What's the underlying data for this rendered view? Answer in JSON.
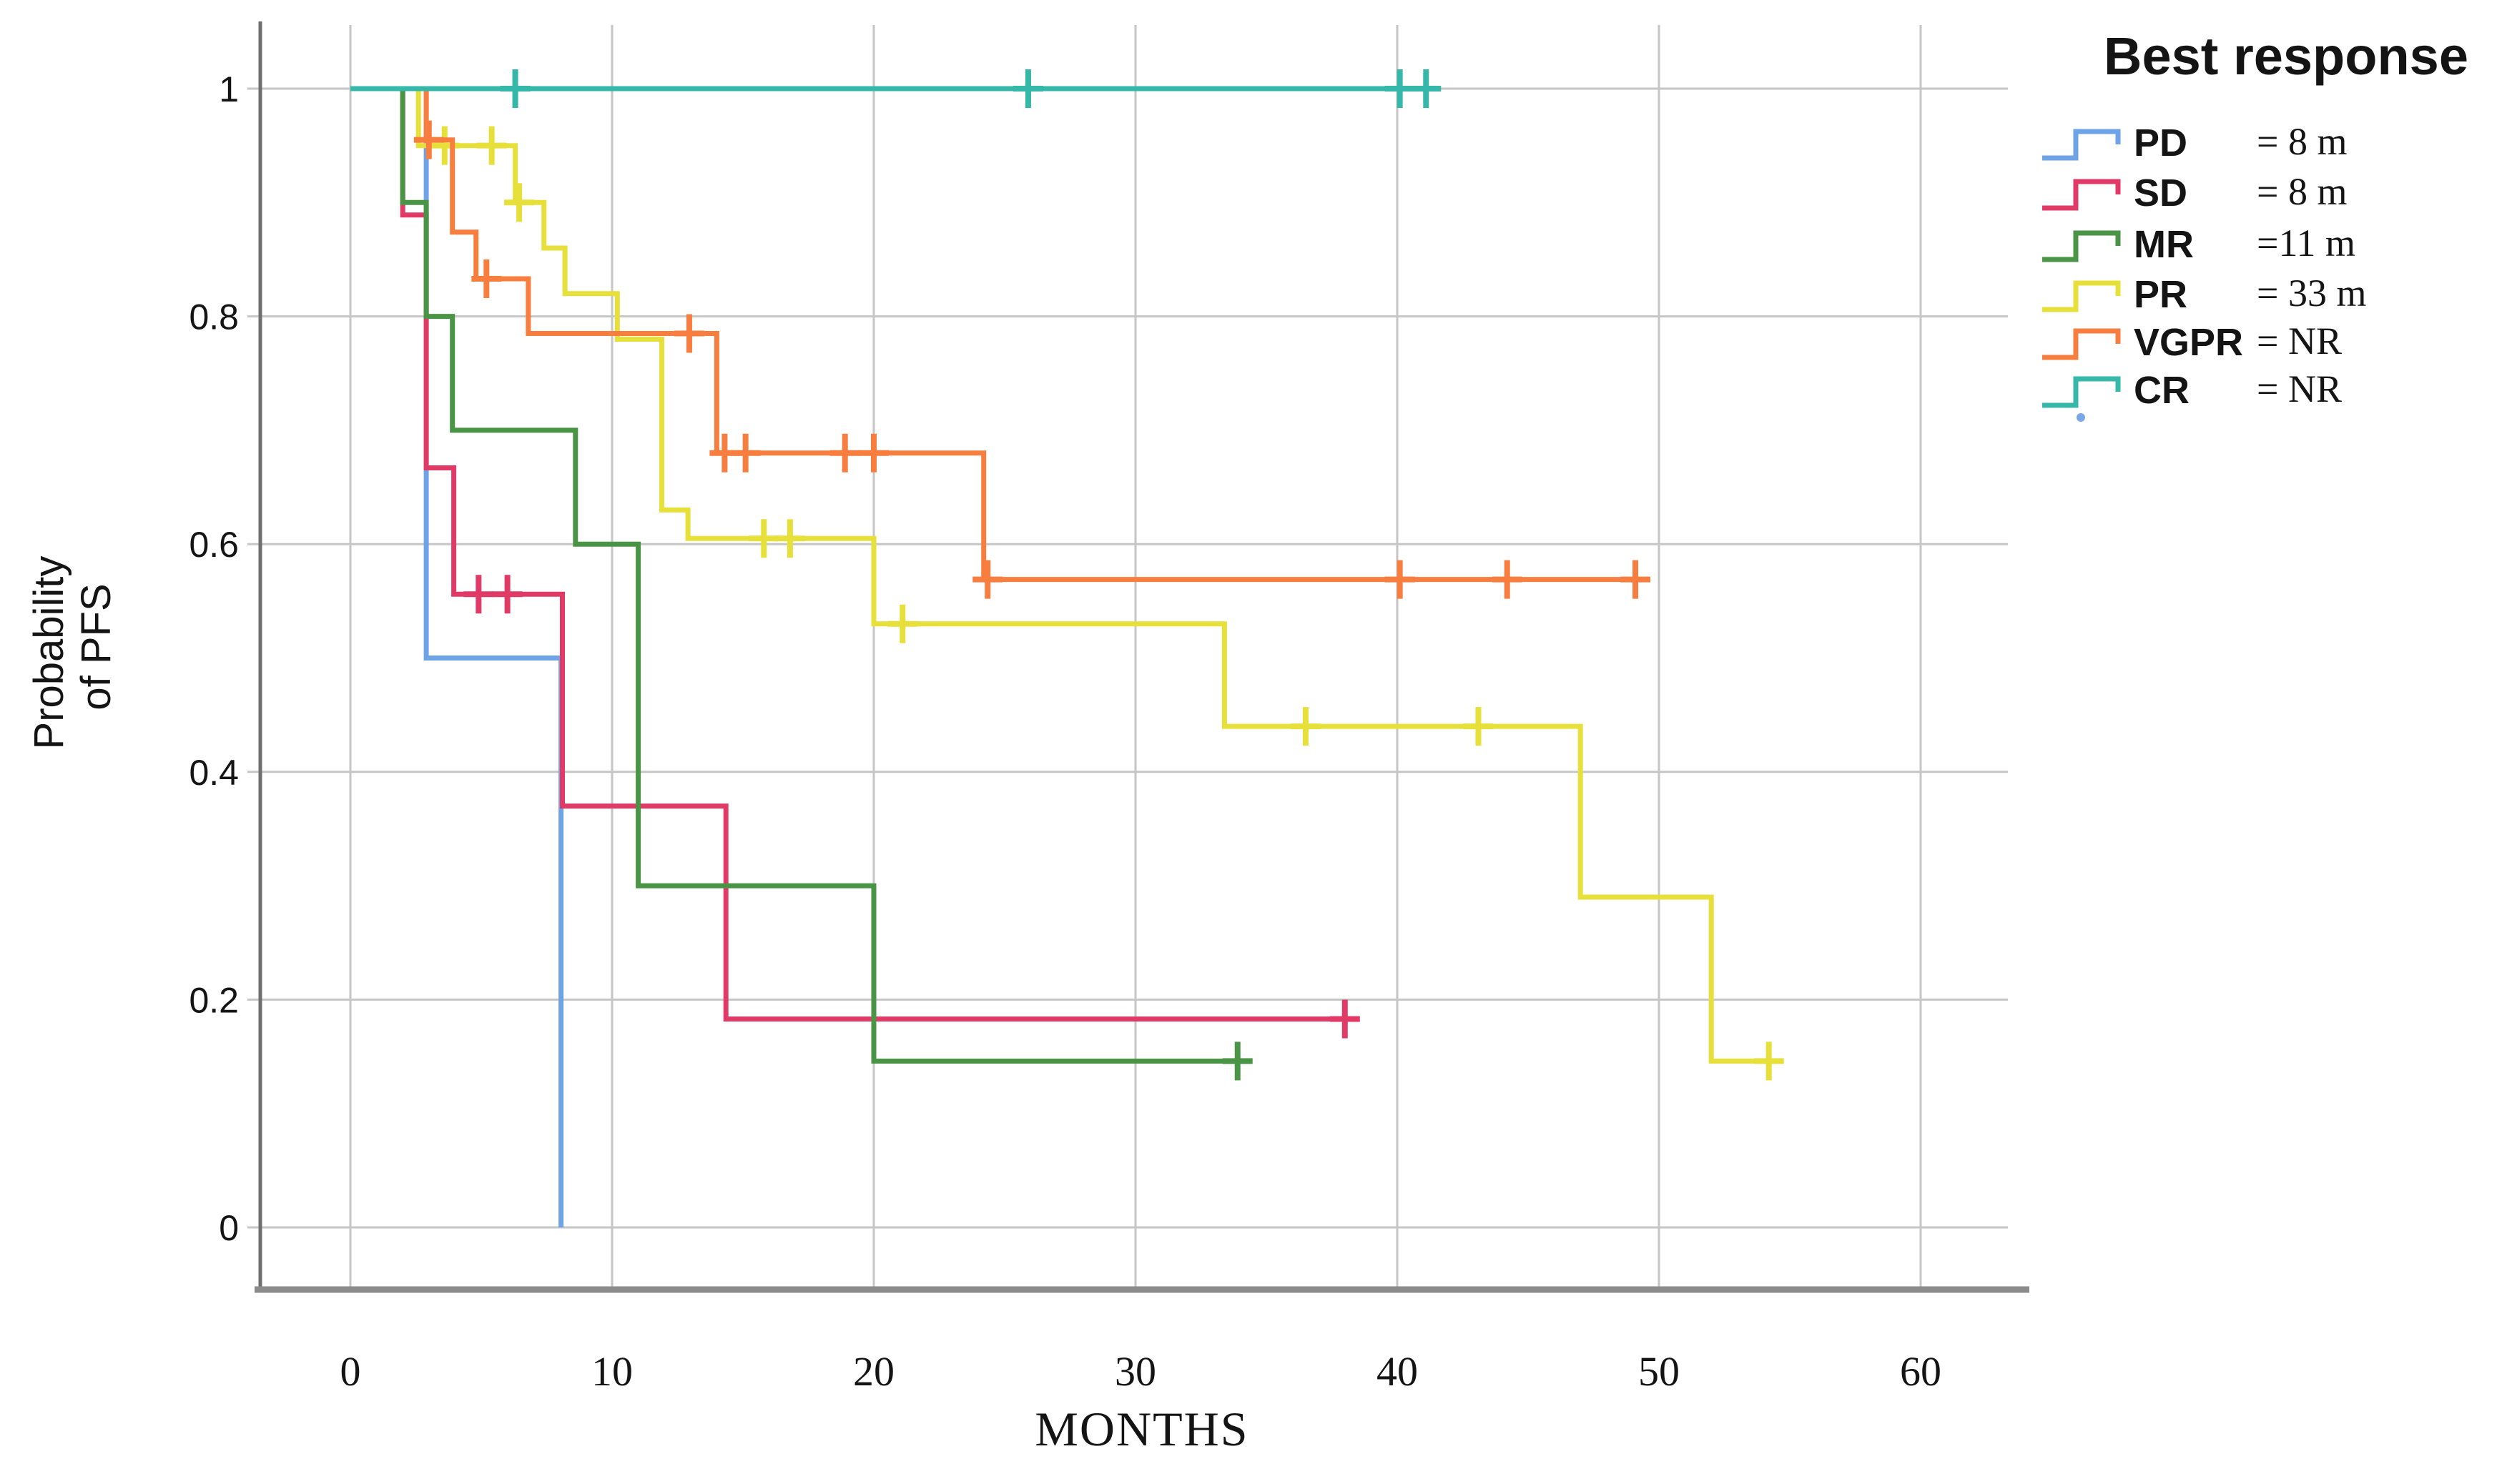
{
  "legend": {
    "title": "Best response",
    "items": [
      {
        "label": "PD",
        "value": "= 8 m"
      },
      {
        "label": "SD",
        "value": "= 8 m"
      },
      {
        "label": "MR",
        "value": "=11 m"
      },
      {
        "label": "PR",
        "value": "= 33 m"
      },
      {
        "label": "VGPR",
        "value": "= NR"
      },
      {
        "label": "CR",
        "value": "= NR"
      }
    ]
  },
  "x_axis": {
    "label": "MONTHS",
    "tick_values": [
      0,
      10,
      20,
      30,
      40,
      50,
      60
    ],
    "tick_labels": [
      "0",
      "10",
      "20",
      "30",
      "40",
      "50",
      "60"
    ]
  },
  "y_axis": {
    "label_lines": [
      "Probability",
      "of PFS"
    ],
    "tick_values": [
      1,
      0.8,
      0.6,
      0.4,
      0.2,
      0
    ],
    "tick_labels": [
      "1",
      "0.8",
      "0.6",
      "0.4",
      "0.2",
      "0"
    ]
  },
  "colors": {
    "grid": "#c6c6c6",
    "axis_left": "#6f6f6f",
    "axis_bottom": "#8b8b8b",
    "text": "#141414"
  },
  "chart_data": {
    "type": "line",
    "subtype": "kaplan_meier_step",
    "title": "Best response",
    "xlabel": "MONTHS",
    "ylabel": "Probability of PFS",
    "xlim": [
      -3.5,
      64
    ],
    "ylim": [
      -0.09,
      1.06
    ],
    "grid": true,
    "legend_position": "top-right",
    "x_ticks": [
      0,
      10,
      20,
      30,
      40,
      50,
      60
    ],
    "y_ticks": [
      0,
      0.2,
      0.4,
      0.6,
      0.8,
      1
    ],
    "series": [
      {
        "name": "PD",
        "median_label": "= 8 m",
        "color": "#6FA3E8",
        "points": [
          [
            0,
            1
          ],
          [
            2.9,
            1
          ],
          [
            2.9,
            0.5
          ],
          [
            8.05,
            0.5
          ],
          [
            8.05,
            0
          ]
        ],
        "censors": []
      },
      {
        "name": "SD",
        "median_label": "= 8 m",
        "color": "#E23A66",
        "points": [
          [
            0,
            1
          ],
          [
            2,
            1
          ],
          [
            2,
            0.889
          ],
          [
            2.9,
            0.889
          ],
          [
            2.9,
            0.667
          ],
          [
            3.95,
            0.667
          ],
          [
            3.95,
            0.556
          ],
          [
            8.1,
            0.556
          ],
          [
            8.1,
            0.37
          ],
          [
            14.35,
            0.37
          ],
          [
            14.35,
            0.183
          ],
          [
            38,
            0.183
          ]
        ],
        "censors": [
          [
            4.9,
            0.556
          ],
          [
            6,
            0.556
          ],
          [
            38,
            0.183
          ]
        ]
      },
      {
        "name": "MR",
        "median_label": "=11 m",
        "color": "#4A9445",
        "points": [
          [
            0,
            1
          ],
          [
            2,
            1
          ],
          [
            2,
            0.9
          ],
          [
            2.9,
            0.9
          ],
          [
            2.9,
            0.8
          ],
          [
            3.9,
            0.8
          ],
          [
            3.9,
            0.7
          ],
          [
            8.6,
            0.7
          ],
          [
            8.6,
            0.6
          ],
          [
            11,
            0.6
          ],
          [
            11,
            0.3
          ],
          [
            20,
            0.3
          ],
          [
            20,
            0.146
          ],
          [
            33.9,
            0.146
          ]
        ],
        "censors": [
          [
            33.9,
            0.146
          ]
        ]
      },
      {
        "name": "PR",
        "median_label": "= 33 m",
        "color": "#E8E03A",
        "points": [
          [
            0,
            1
          ],
          [
            2.6,
            1
          ],
          [
            2.6,
            0.95
          ],
          [
            6.3,
            0.95
          ],
          [
            6.3,
            0.9
          ],
          [
            7.4,
            0.9
          ],
          [
            7.4,
            0.86
          ],
          [
            8.2,
            0.86
          ],
          [
            8.2,
            0.82
          ],
          [
            10.2,
            0.82
          ],
          [
            10.2,
            0.78
          ],
          [
            11.9,
            0.78
          ],
          [
            11.9,
            0.63
          ],
          [
            12.9,
            0.63
          ],
          [
            12.9,
            0.605
          ],
          [
            20,
            0.605
          ],
          [
            20,
            0.53
          ],
          [
            33.4,
            0.53
          ],
          [
            33.4,
            0.44
          ],
          [
            47,
            0.44
          ],
          [
            47,
            0.29
          ],
          [
            52,
            0.29
          ],
          [
            52,
            0.146
          ],
          [
            54.2,
            0.146
          ]
        ],
        "censors": [
          [
            3.6,
            0.95
          ],
          [
            5.4,
            0.95
          ],
          [
            6.45,
            0.9
          ],
          [
            15.8,
            0.605
          ],
          [
            16.8,
            0.605
          ],
          [
            21.1,
            0.53
          ],
          [
            36.5,
            0.44
          ],
          [
            43.1,
            0.44
          ],
          [
            54.2,
            0.146
          ]
        ]
      },
      {
        "name": "VGPR",
        "median_label": "= NR",
        "color": "#F87E40",
        "points": [
          [
            0,
            1
          ],
          [
            2.9,
            1
          ],
          [
            2.9,
            0.955
          ],
          [
            3.9,
            0.955
          ],
          [
            3.9,
            0.874
          ],
          [
            4.8,
            0.874
          ],
          [
            4.8,
            0.833
          ],
          [
            6.8,
            0.833
          ],
          [
            6.8,
            0.785
          ],
          [
            14,
            0.785
          ],
          [
            14,
            0.68
          ],
          [
            24.2,
            0.68
          ],
          [
            24.2,
            0.569
          ],
          [
            49.1,
            0.569
          ]
        ],
        "censors": [
          [
            3.0,
            0.955
          ],
          [
            5.2,
            0.833
          ],
          [
            12.95,
            0.785
          ],
          [
            14.3,
            0.68
          ],
          [
            15.1,
            0.68
          ],
          [
            18.9,
            0.68
          ],
          [
            20,
            0.68
          ],
          [
            24.35,
            0.569
          ],
          [
            40.1,
            0.569
          ],
          [
            44.2,
            0.569
          ],
          [
            49.1,
            0.569
          ]
        ]
      },
      {
        "name": "CR",
        "median_label": "= NR",
        "color": "#35B7A9",
        "points": [
          [
            0,
            1
          ],
          [
            41.3,
            1
          ]
        ],
        "censors": [
          [
            6.3,
            1
          ],
          [
            25.9,
            1
          ],
          [
            40.1,
            1
          ],
          [
            41.1,
            1
          ]
        ]
      }
    ]
  }
}
